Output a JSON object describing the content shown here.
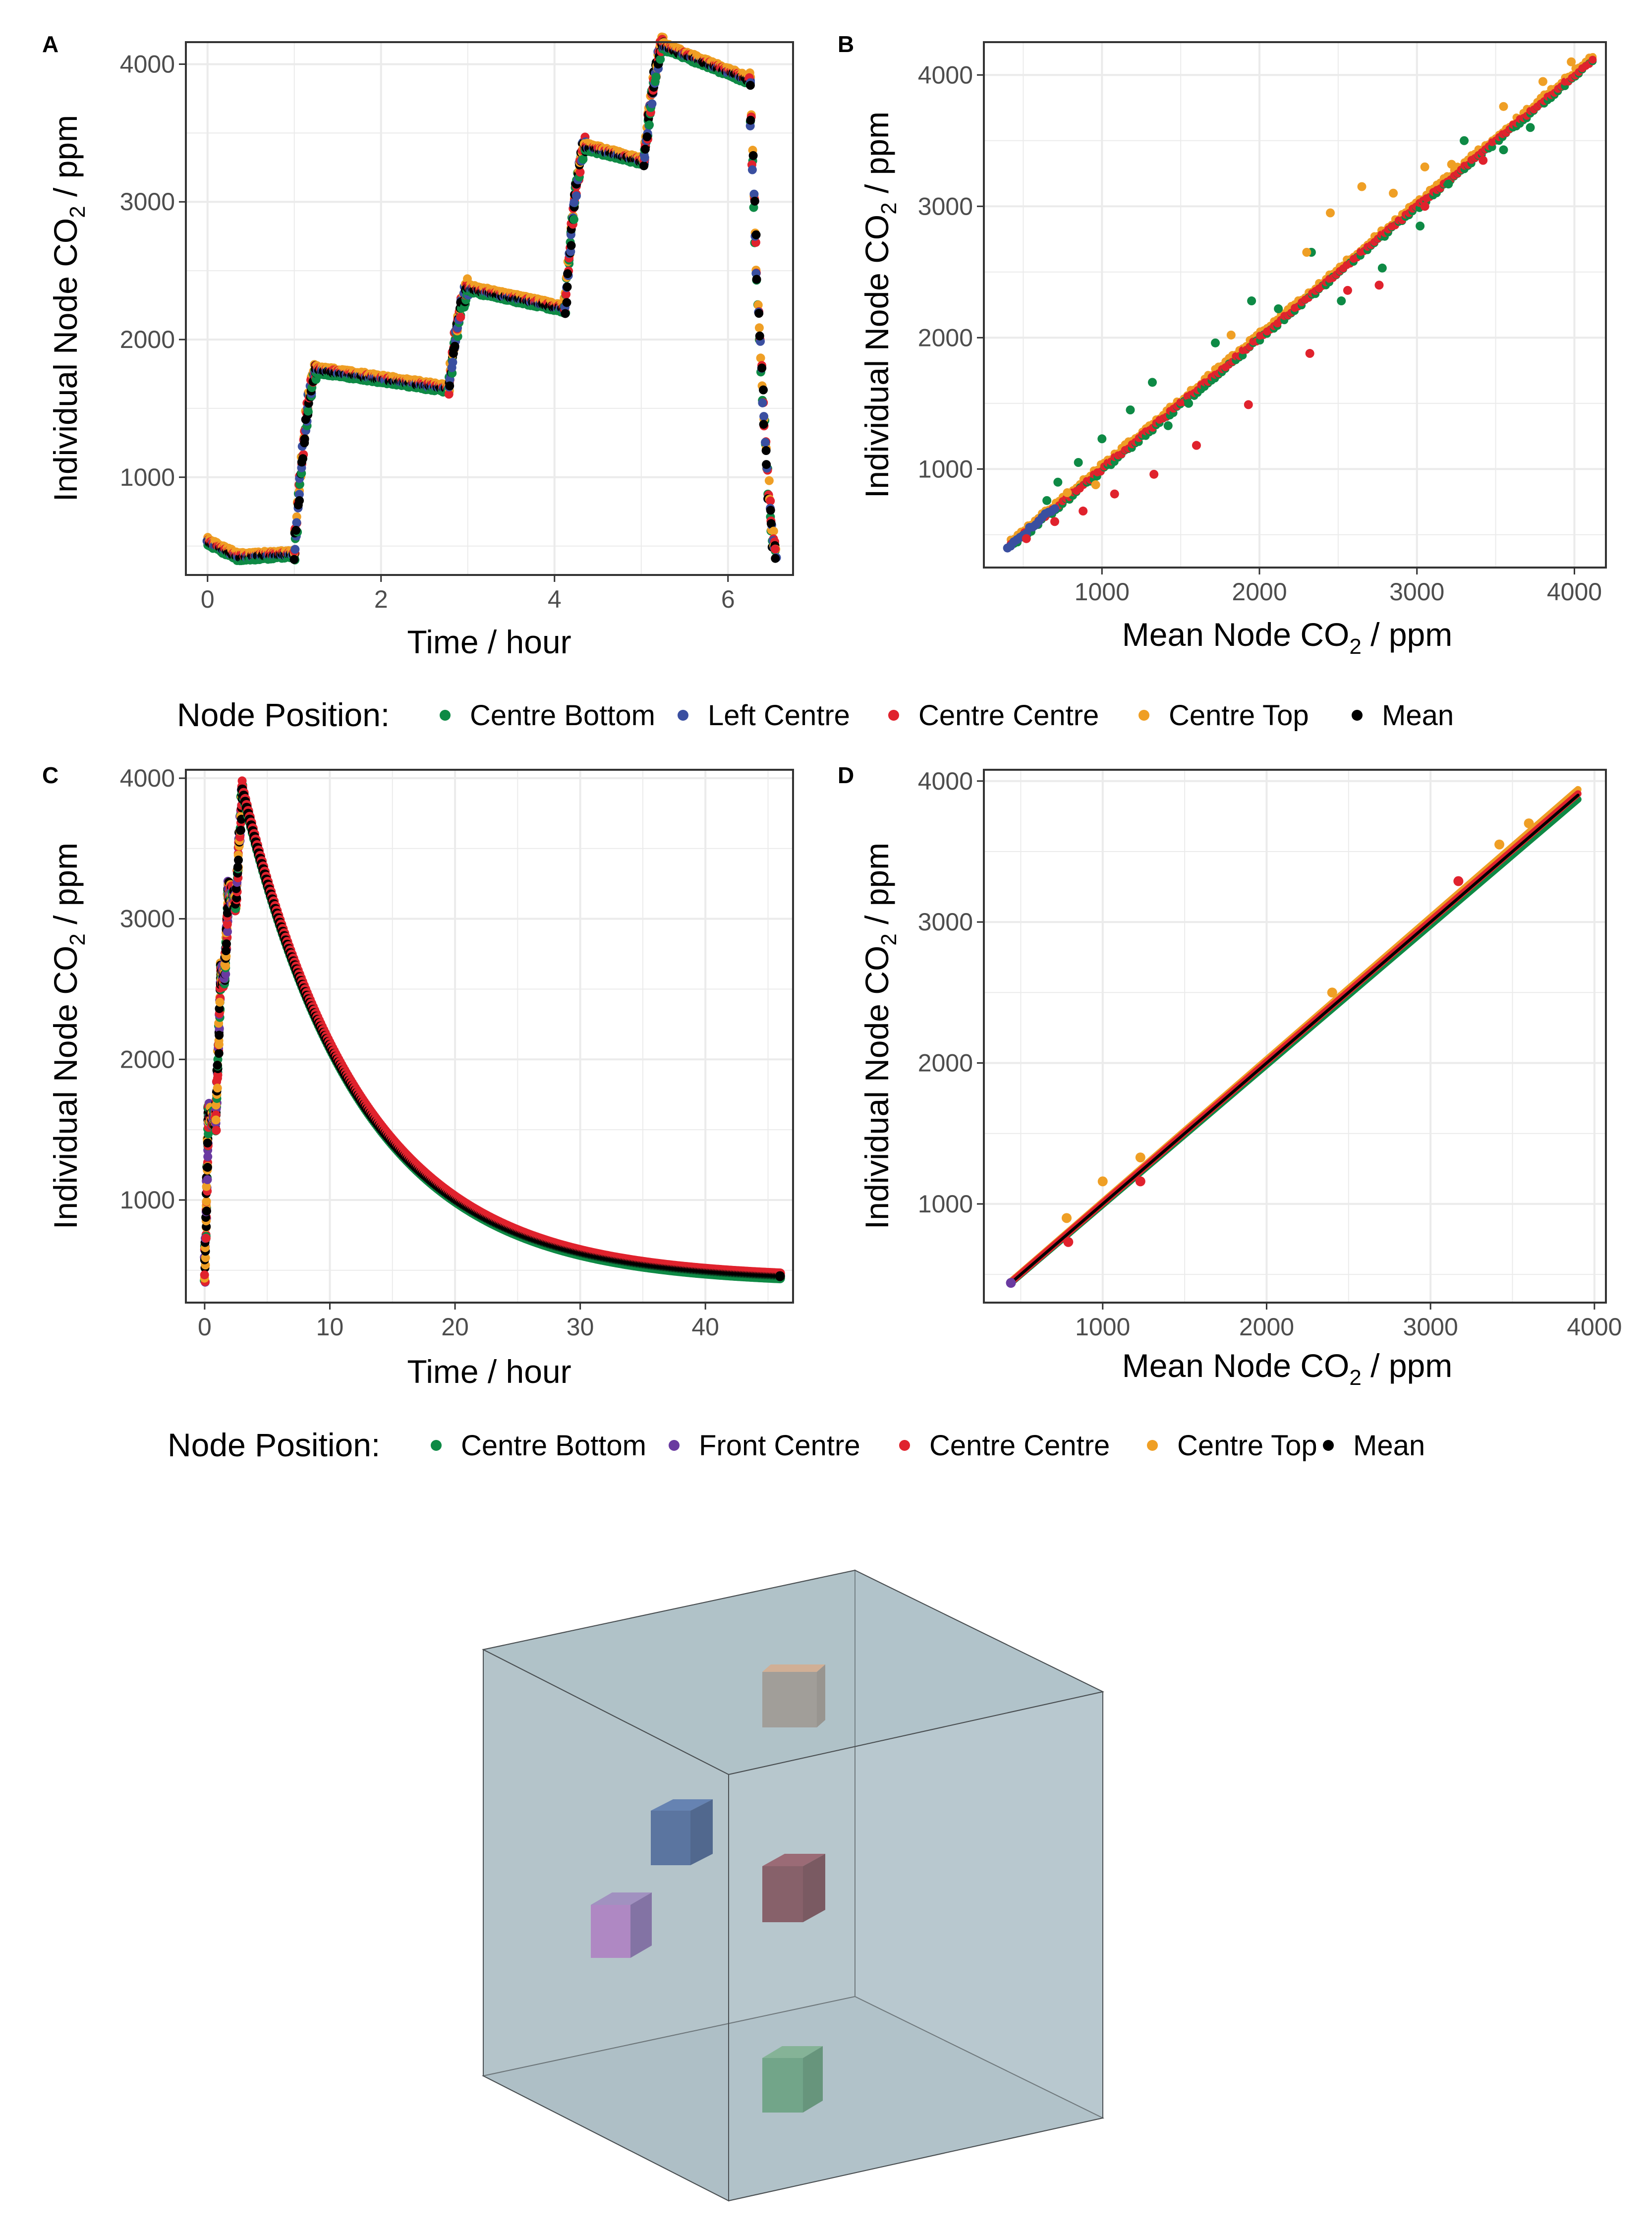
{
  "colors": {
    "centre_bottom": "#0e8a45",
    "left_centre": "#3a4fa0",
    "front_centre": "#6a3aa0",
    "centre_centre": "#e0222d",
    "centre_top": "#ef9f25",
    "mean": "#000000",
    "grid": "#ebebeb",
    "panel_border": "#333333",
    "box_fill": "#b4c6cc",
    "box_edge": "#4a4f52"
  },
  "legend_top": {
    "title": "Node Position:",
    "items": [
      {
        "label": "Centre Bottom",
        "color": "#0e8a45"
      },
      {
        "label": "Left Centre",
        "color": "#3a4fa0"
      },
      {
        "label": "Centre Centre",
        "color": "#e0222d"
      },
      {
        "label": "Centre Top",
        "color": "#ef9f25"
      },
      {
        "label": "Mean",
        "color": "#000000"
      }
    ]
  },
  "legend_bottom": {
    "title": "Node Position:",
    "items": [
      {
        "label": "Centre Bottom",
        "color": "#0e8a45"
      },
      {
        "label": "Front Centre",
        "color": "#6a3aa0"
      },
      {
        "label": "Centre Centre",
        "color": "#e0222d"
      },
      {
        "label": "Centre Top",
        "color": "#ef9f25"
      },
      {
        "label": "Mean",
        "color": "#000000"
      }
    ]
  },
  "chart_data": [
    {
      "panel": "A",
      "type": "scatter",
      "title": "",
      "xlabel": "Time / hour",
      "ylabel_main": "Individual Node CO",
      "ylabel_sub": "2",
      "ylabel_tail": " / ppm",
      "xlim": [
        -0.25,
        6.75
      ],
      "ylim": [
        290,
        4160
      ],
      "xticks": [
        0,
        2,
        4,
        6
      ],
      "yticks": [
        1000,
        2000,
        3000,
        4000
      ],
      "series_shape": "stepped injections: baseline ~420 ppm, steps to ~1780, ~2370, ~3400, ~4140 ppm with slow decay after each, then rapid venting to ~450 ppm",
      "segments": [
        {
          "t0": 0.0,
          "t1": 0.35,
          "v0": 530,
          "v1": 420
        },
        {
          "t0": 0.35,
          "t1": 1.0,
          "v0": 420,
          "v1": 440
        },
        {
          "t0": 1.0,
          "t1": 1.25,
          "v0": 440,
          "v1": 1780
        },
        {
          "t0": 1.25,
          "t1": 2.78,
          "v0": 1780,
          "v1": 1640
        },
        {
          "t0": 2.78,
          "t1": 3.0,
          "v0": 1640,
          "v1": 2370
        },
        {
          "t0": 3.0,
          "t1": 4.12,
          "v0": 2370,
          "v1": 2220
        },
        {
          "t0": 4.12,
          "t1": 4.35,
          "v0": 2220,
          "v1": 3400
        },
        {
          "t0": 4.35,
          "t1": 5.03,
          "v0": 3400,
          "v1": 3290
        },
        {
          "t0": 5.03,
          "t1": 5.25,
          "v0": 3290,
          "v1": 4130
        },
        {
          "t0": 5.25,
          "t1": 6.25,
          "v0": 4130,
          "v1": 3880
        },
        {
          "t0": 6.25,
          "t1": 6.55,
          "v0": 3880,
          "v1": 450
        }
      ]
    },
    {
      "panel": "B",
      "type": "scatter",
      "title": "",
      "xlabel_main": "Mean Node CO",
      "xlabel_sub": "2",
      "xlabel_tail": " / ppm",
      "ylabel_main": "Individual Node CO",
      "ylabel_sub": "2",
      "ylabel_tail": " / ppm",
      "xlim": [
        250,
        4200
      ],
      "ylim": [
        250,
        4250
      ],
      "xticks": [
        1000,
        2000,
        3000,
        4000
      ],
      "yticks": [
        1000,
        2000,
        3000,
        4000
      ],
      "lines": [
        {
          "name": "Mean",
          "x": [
            420,
            4130
          ],
          "y": [
            420,
            4130
          ]
        },
        {
          "name": "Centre Top fit",
          "x": [
            420,
            4130
          ],
          "y": [
            450,
            4160
          ]
        }
      ],
      "outliers": {
        "Centre Bottom": [
          [
            650,
            760
          ],
          [
            720,
            900
          ],
          [
            850,
            1050
          ],
          [
            1000,
            1230
          ],
          [
            1180,
            1450
          ],
          [
            1320,
            1660
          ],
          [
            1420,
            1330
          ],
          [
            1550,
            1500
          ],
          [
            1720,
            1960
          ],
          [
            1950,
            2280
          ],
          [
            2120,
            2220
          ],
          [
            2330,
            2650
          ],
          [
            2520,
            2280
          ],
          [
            2780,
            2530
          ],
          [
            3020,
            2850
          ],
          [
            3200,
            3170
          ],
          [
            3300,
            3500
          ],
          [
            3550,
            3430
          ],
          [
            3720,
            3600
          ]
        ],
        "Centre Centre": [
          [
            520,
            470
          ],
          [
            700,
            600
          ],
          [
            880,
            680
          ],
          [
            1080,
            810
          ],
          [
            1330,
            960
          ],
          [
            1600,
            1180
          ],
          [
            1930,
            1490
          ],
          [
            2320,
            1880
          ],
          [
            2560,
            2360
          ],
          [
            2760,
            2400
          ],
          [
            3050,
            3000
          ],
          [
            3420,
            3350
          ]
        ],
        "Centre Top": [
          [
            780,
            820
          ],
          [
            960,
            880
          ],
          [
            1820,
            2020
          ],
          [
            2300,
            2650
          ],
          [
            2450,
            2950
          ],
          [
            2650,
            3150
          ],
          [
            2850,
            3100
          ],
          [
            3050,
            3300
          ],
          [
            3220,
            3320
          ],
          [
            3550,
            3760
          ],
          [
            3800,
            3950
          ],
          [
            3980,
            4100
          ]
        ]
      }
    },
    {
      "panel": "C",
      "type": "scatter",
      "title": "",
      "xlabel": "Time / hour",
      "ylabel_main": "Individual Node CO",
      "ylabel_sub": "2",
      "ylabel_tail": " / ppm",
      "xlim": [
        -1.5,
        47
      ],
      "ylim": [
        270,
        4060
      ],
      "xticks": [
        0,
        10,
        20,
        30,
        40
      ],
      "yticks": [
        1000,
        2000,
        3000,
        4000
      ],
      "series_shape": "stepped rise to peak ~3920 ppm at ~3 h, then exponential decay to ~450 ppm by ~46 h",
      "rise": [
        [
          0,
          450
        ],
        [
          0.3,
          1620
        ],
        [
          0.9,
          1560
        ],
        [
          1.3,
          2620
        ],
        [
          1.6,
          2570
        ],
        [
          1.9,
          3200
        ],
        [
          2.5,
          3120
        ],
        [
          3.0,
          3920
        ]
      ],
      "decay": {
        "start_hour": 3.0,
        "end_hour": 46.0,
        "start_value": 3920,
        "baseline": 420,
        "time_constant_hours": 9.5
      }
    },
    {
      "panel": "D",
      "type": "scatter",
      "title": "",
      "xlabel_main": "Mean Node CO",
      "xlabel_sub": "2",
      "xlabel_tail": " / ppm",
      "ylabel_main": "Individual Node CO",
      "ylabel_sub": "2",
      "ylabel_tail": " / ppm",
      "xlim": [
        275,
        4070
      ],
      "ylim": [
        300,
        4080
      ],
      "xticks": [
        1000,
        2000,
        3000,
        4000
      ],
      "yticks": [
        1000,
        2000,
        3000,
        4000
      ],
      "lines": [
        {
          "name": "Centre Bottom",
          "x": [
            440,
            3900
          ],
          "y": [
            440,
            3870
          ]
        },
        {
          "name": "Centre Top",
          "x": [
            440,
            3900
          ],
          "y": [
            450,
            3940
          ]
        },
        {
          "name": "Centre Centre",
          "x": [
            440,
            3900
          ],
          "y": [
            445,
            3910
          ]
        },
        {
          "name": "Mean",
          "x": [
            440,
            3900
          ],
          "y": [
            440,
            3900
          ]
        }
      ],
      "outliers": {
        "Centre Top": [
          [
            780,
            900
          ],
          [
            1000,
            1160
          ],
          [
            1230,
            1330
          ],
          [
            2400,
            2500
          ],
          [
            3420,
            3550
          ],
          [
            3600,
            3700
          ]
        ],
        "Centre Centre": [
          [
            790,
            730
          ],
          [
            1230,
            1160
          ],
          [
            3170,
            3290
          ]
        ]
      }
    }
  ],
  "panels": {
    "a": "A",
    "b": "B",
    "c": "C",
    "d": "D"
  },
  "illustration": {
    "description_nodes": [
      "centre-top",
      "left-centre",
      "centre-centre",
      "front-centre",
      "centre-bottom"
    ],
    "node_colors": {
      "centre_top": "#9b8677",
      "left_centre": "#2e4d8c",
      "centre_centre": "#6e2a35",
      "front_centre": "#7a58a0",
      "centre_bottom": "#4e9264"
    }
  }
}
